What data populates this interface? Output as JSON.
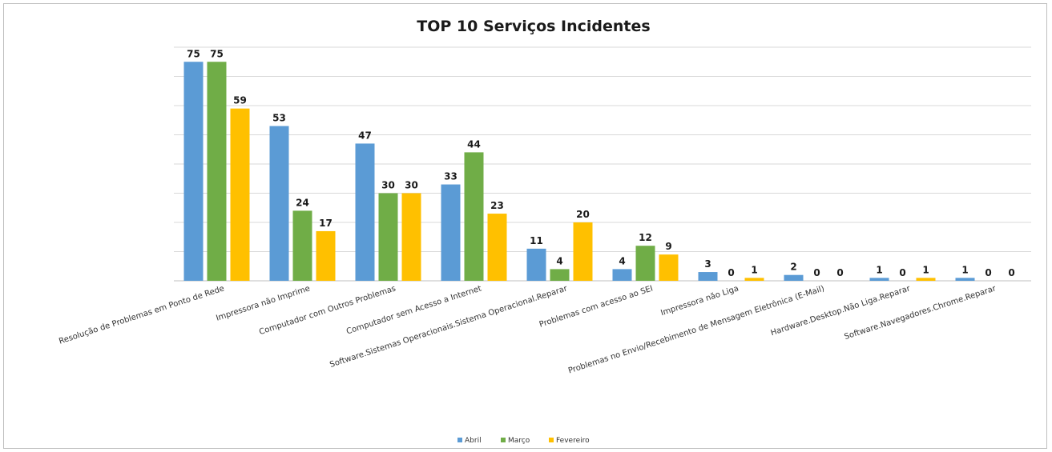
{
  "chart_data": {
    "type": "bar",
    "title": "TOP 10 Serviços Incidentes",
    "categories": [
      "Resolução de Problemas em Ponto de Rede",
      "Impressora não Imprime",
      "Computador com Outros Problemas",
      "Computador sem Acesso a Internet",
      "Software.Sistemas Operacionais.Sistema Operacional.Reparar",
      "Problemas com acesso ao SEI",
      "Impressora não Liga",
      "Problemas no Envio/Recebimento de Mensagem Eletrônica (E-Mail)",
      "Hardware.Desktop.Não Liga.Reparar",
      "Software.Navegadores.Chrome.Reparar"
    ],
    "series": [
      {
        "name": "Abril",
        "color": "#5b9bd5",
        "values": [
          75,
          53,
          47,
          33,
          11,
          4,
          3,
          2,
          1,
          1
        ]
      },
      {
        "name": "Março",
        "color": "#70ad47",
        "values": [
          75,
          24,
          30,
          44,
          4,
          12,
          0,
          0,
          0,
          0
        ]
      },
      {
        "name": "Fevereiro",
        "color": "#ffc000",
        "values": [
          59,
          17,
          30,
          23,
          20,
          9,
          1,
          0,
          1,
          0
        ]
      }
    ],
    "ylim": [
      0,
      80
    ],
    "grid": true,
    "y_axis_labels_visible": false,
    "legend_position": "bottom"
  }
}
